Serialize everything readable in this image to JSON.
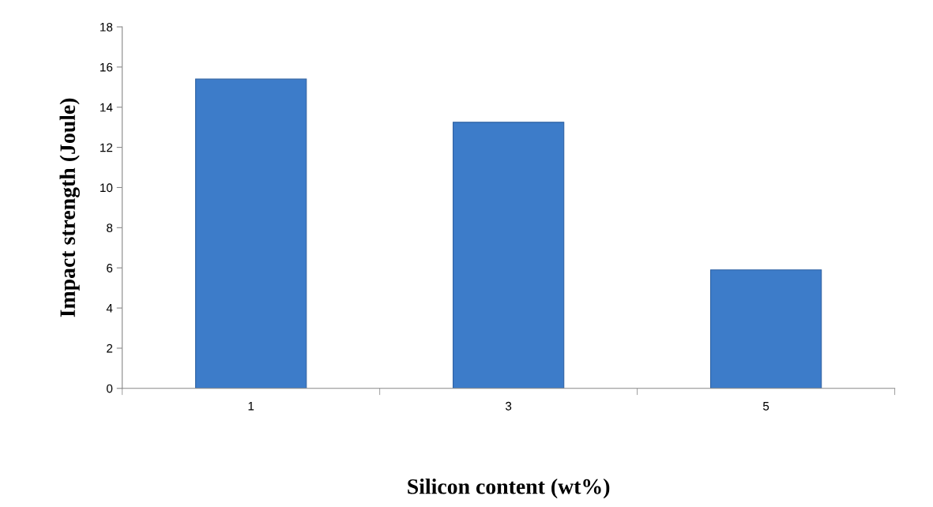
{
  "chart_data": {
    "type": "bar",
    "xlabel": "Silicon content (wt%)",
    "ylabel": "Impact strength (Joule)",
    "categories": [
      "1",
      "3",
      "5"
    ],
    "values": [
      15.4,
      13.25,
      5.9
    ],
    "color": "#3d7cc9",
    "ylim": [
      0,
      18
    ],
    "yticks": [
      0,
      2,
      4,
      6,
      8,
      10,
      12,
      14,
      16,
      18
    ],
    "grid": false
  }
}
